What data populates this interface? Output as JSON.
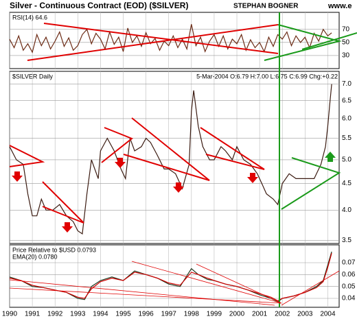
{
  "header": {
    "title": "Silver - Continuous Contract (EOD) ($SILVER)",
    "author": "STEPHAN BOGNER",
    "site": "www.e"
  },
  "chart_data": [
    {
      "type": "line",
      "label": "RSI(14) 64.6",
      "x": [
        1990.0,
        1990.2,
        1990.4,
        1990.6,
        1990.8,
        1991.0,
        1991.2,
        1991.4,
        1991.6,
        1991.8,
        1992.0,
        1992.2,
        1992.4,
        1992.6,
        1992.8,
        1993.0,
        1993.2,
        1993.4,
        1993.6,
        1993.8,
        1994.0,
        1994.2,
        1994.4,
        1994.6,
        1994.8,
        1995.0,
        1995.2,
        1995.4,
        1995.6,
        1995.8,
        1996.0,
        1996.2,
        1996.4,
        1996.6,
        1996.8,
        1997.0,
        1997.2,
        1997.4,
        1997.6,
        1997.8,
        1998.0,
        1998.2,
        1998.4,
        1998.6,
        1998.8,
        1999.0,
        1999.2,
        1999.4,
        1999.6,
        1999.8,
        2000.0,
        2000.2,
        2000.4,
        2000.6,
        2000.8,
        2001.0,
        2001.2,
        2001.4,
        2001.6,
        2001.8,
        2002.0,
        2002.2,
        2002.4,
        2002.6,
        2002.8,
        2003.0,
        2003.2,
        2003.4,
        2003.6,
        2003.8,
        2004.0,
        2004.17
      ],
      "series": [
        {
          "name": "RSI(14)",
          "color": "#6b2a14",
          "values": [
            55,
            42,
            60,
            38,
            48,
            35,
            62,
            45,
            58,
            40,
            52,
            66,
            44,
            57,
            38,
            45,
            62,
            70,
            48,
            64,
            55,
            40,
            66,
            47,
            58,
            36,
            72,
            50,
            60,
            44,
            65,
            48,
            56,
            38,
            52,
            45,
            60,
            42,
            55,
            40,
            78,
            45,
            58,
            36,
            52,
            62,
            44,
            60,
            40,
            55,
            48,
            62,
            38,
            54,
            42,
            50,
            36,
            58,
            44,
            62,
            55,
            66,
            45,
            60,
            50,
            58,
            42,
            64,
            52,
            70,
            60,
            64.6
          ]
        }
      ],
      "ylim": [
        10,
        96
      ],
      "yticks": [
        30,
        50,
        70
      ],
      "xlim": [
        1990,
        2004.5
      ]
    },
    {
      "type": "line",
      "label": "$SILVER Daily",
      "info": "5-Mar-2004 O:6.79 H:7.00 L:6.75 C:6.99 Chg:+0.22",
      "x": [
        1990.0,
        1990.3,
        1990.6,
        1990.8,
        1991.0,
        1991.2,
        1991.4,
        1991.6,
        1991.9,
        1992.2,
        1992.5,
        1992.8,
        1993.0,
        1993.2,
        1993.4,
        1993.6,
        1993.9,
        1994.0,
        1994.3,
        1994.6,
        1994.9,
        1995.1,
        1995.3,
        1995.5,
        1995.8,
        1996.0,
        1996.2,
        1996.5,
        1996.8,
        1997.0,
        1997.3,
        1997.6,
        1997.9,
        1998.0,
        1998.1,
        1998.3,
        1998.5,
        1998.8,
        1999.0,
        1999.3,
        1999.5,
        1999.8,
        2000.0,
        2000.3,
        2000.6,
        2000.9,
        2001.1,
        2001.3,
        2001.6,
        2001.8,
        2002.0,
        2002.3,
        2002.6,
        2002.9,
        2003.1,
        2003.4,
        2003.7,
        2003.9,
        2004.0,
        2004.1,
        2004.17
      ],
      "series": [
        {
          "name": "$SILVER",
          "color": "#3a1a10",
          "values": [
            5.3,
            5.0,
            4.9,
            4.3,
            3.9,
            3.9,
            4.2,
            4.0,
            4.0,
            4.1,
            3.9,
            3.8,
            3.65,
            3.6,
            4.3,
            5.0,
            4.6,
            5.2,
            5.5,
            5.2,
            4.8,
            4.6,
            5.5,
            5.2,
            5.3,
            5.5,
            5.4,
            5.1,
            4.8,
            4.8,
            4.7,
            4.4,
            4.9,
            6.2,
            6.8,
            5.8,
            5.3,
            5.0,
            5.0,
            5.3,
            5.2,
            5.0,
            5.3,
            5.0,
            4.9,
            4.7,
            4.5,
            4.3,
            4.2,
            4.1,
            4.5,
            4.7,
            4.6,
            4.6,
            4.6,
            4.6,
            4.9,
            5.3,
            5.8,
            6.5,
            6.99
          ]
        }
      ],
      "log_scale": true,
      "ylim": [
        3.45,
        7.4
      ],
      "yticks": [
        3.5,
        {
          "value": 4,
          "label": "4.0"
        },
        4.5,
        {
          "value": 5,
          "label": "5.0"
        },
        5.5,
        {
          "value": 6,
          "label": "6.0"
        },
        6.5,
        {
          "value": 7,
          "label": "7.0"
        }
      ],
      "xlim": [
        1990,
        2004.5
      ]
    },
    {
      "type": "line",
      "label": "Price Relative to $USD 0.0793",
      "label2": "EMA(20) 0.0780",
      "x": [
        1990.0,
        1990.5,
        1991.0,
        1991.5,
        1992.0,
        1992.5,
        1993.0,
        1993.3,
        1993.6,
        1994.0,
        1994.5,
        1995.0,
        1995.5,
        1996.0,
        1996.5,
        1997.0,
        1997.5,
        1998.0,
        1998.3,
        1998.7,
        1999.0,
        1999.5,
        2000.0,
        2000.5,
        2001.0,
        2001.5,
        2001.8,
        2002.0,
        2002.5,
        2003.0,
        2003.5,
        2003.8,
        2004.0,
        2004.17
      ],
      "series": [
        {
          "name": "Price Relative to $USD",
          "color": "#1f3a1f",
          "values": [
            0.058,
            0.055,
            0.05,
            0.049,
            0.047,
            0.045,
            0.04,
            0.039,
            0.05,
            0.055,
            0.058,
            0.055,
            0.063,
            0.06,
            0.057,
            0.052,
            0.05,
            0.065,
            0.06,
            0.056,
            0.055,
            0.052,
            0.05,
            0.047,
            0.043,
            0.04,
            0.037,
            0.04,
            0.042,
            0.045,
            0.05,
            0.055,
            0.068,
            0.0793
          ]
        },
        {
          "name": "EMA(20)",
          "color": "#d00000",
          "values": [
            0.057,
            0.055,
            0.051,
            0.049,
            0.047,
            0.045,
            0.041,
            0.04,
            0.048,
            0.054,
            0.057,
            0.055,
            0.062,
            0.06,
            0.057,
            0.053,
            0.051,
            0.062,
            0.06,
            0.057,
            0.055,
            0.052,
            0.05,
            0.047,
            0.044,
            0.041,
            0.038,
            0.04,
            0.042,
            0.045,
            0.049,
            0.054,
            0.066,
            0.078
          ]
        }
      ],
      "ylim": [
        0.0325,
        0.085
      ],
      "yticks": [
        0.04,
        0.05,
        0.06,
        0.07
      ],
      "xlim": [
        1990,
        2004.5
      ],
      "xticks": [
        1990,
        1991,
        1992,
        1993,
        1994,
        1995,
        1996,
        1997,
        1998,
        1999,
        2000,
        2001,
        2002,
        2003,
        2004
      ]
    }
  ]
}
